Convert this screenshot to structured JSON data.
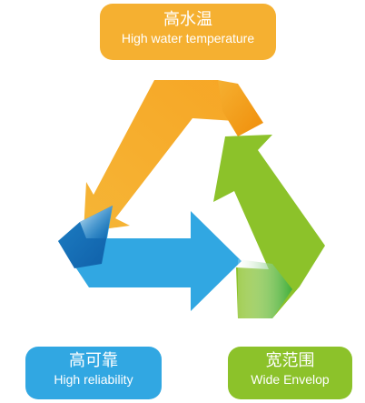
{
  "colors": {
    "orange": "#F5B031",
    "blue": "#31A7E2",
    "green": "#8CC22A"
  },
  "labels": {
    "top": {
      "zh": "高水温",
      "en": "High water temperature"
    },
    "left": {
      "zh": "高可靠",
      "en": "High reliability"
    },
    "right": {
      "zh": "宽范围",
      "en": "Wide Envelop"
    }
  }
}
